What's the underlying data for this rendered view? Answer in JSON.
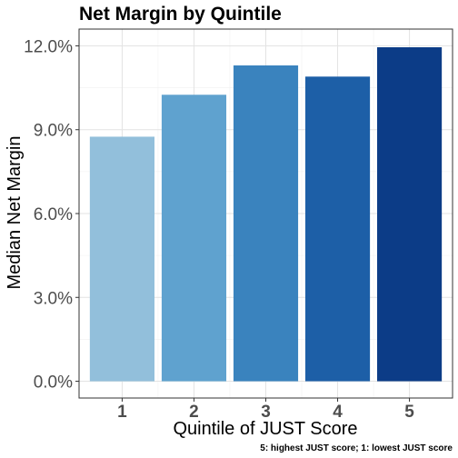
{
  "chart_data": {
    "type": "bar",
    "title": "Net Margin by Quintile",
    "xlabel": "Quintile of JUST Score",
    "ylabel": "Median Net Margin",
    "caption": "5: highest JUST score; 1: lowest JUST score",
    "categories": [
      "1",
      "2",
      "3",
      "4",
      "5"
    ],
    "values": [
      8.75,
      10.25,
      11.3,
      10.9,
      11.95
    ],
    "colors": [
      "#92bfdb",
      "#5fa2cf",
      "#3a83be",
      "#1d5fa7",
      "#0c3c87"
    ],
    "ylim": [
      -0.6,
      12.6
    ],
    "yticks": [
      {
        "value": 0,
        "label": "0.0%"
      },
      {
        "value": 3,
        "label": "3.0%"
      },
      {
        "value": 6,
        "label": "6.0%"
      },
      {
        "value": 9,
        "label": "9.0%"
      },
      {
        "value": 12,
        "label": "12.0%"
      }
    ],
    "grid": true,
    "legend": "none"
  }
}
